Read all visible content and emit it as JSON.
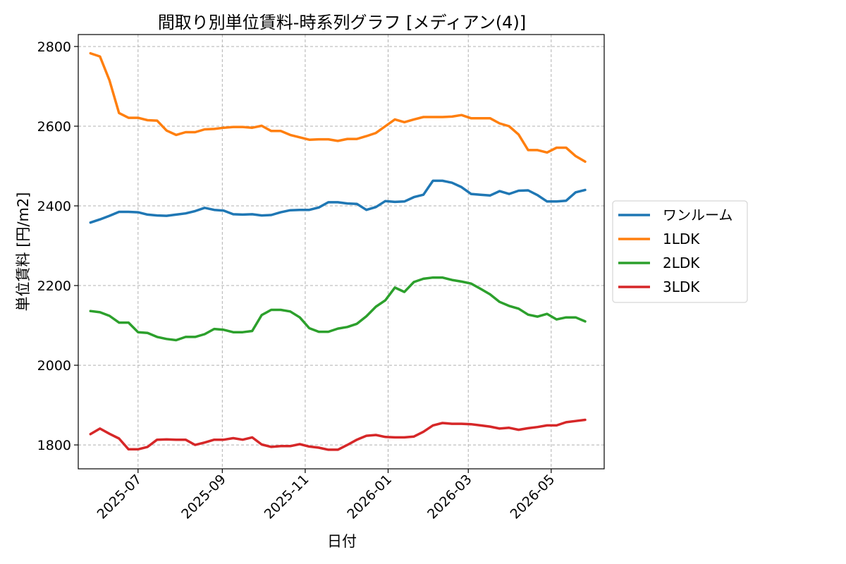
{
  "chart_data": {
    "type": "line",
    "title": "間取り別単位賃料-時系列グラフ [メディアン(4)]",
    "xlabel": "日付",
    "ylabel": "単位賃料 [円/m2]",
    "ylim": [
      1740,
      2830
    ],
    "yticks": [
      1800,
      2000,
      2200,
      2400,
      2600,
      2800
    ],
    "xlim": [
      "2025-05-18",
      "2026-06-09"
    ],
    "xticks": [
      "2025-07-01",
      "2025-09-01",
      "2025-11-01",
      "2026-01-01",
      "2026-03-01",
      "2026-05-01"
    ],
    "xtick_labels": [
      "2025-07",
      "2025-09",
      "2025-11",
      "2026-01",
      "2026-03",
      "2026-05"
    ],
    "grid": true,
    "legend_position": "right-outside",
    "x": [
      "2025-05-27",
      "2025-06-03",
      "2025-06-10",
      "2025-06-17",
      "2025-06-24",
      "2025-07-01",
      "2025-07-08",
      "2025-07-15",
      "2025-07-22",
      "2025-07-29",
      "2025-08-05",
      "2025-08-12",
      "2025-08-19",
      "2025-08-26",
      "2025-09-02",
      "2025-09-09",
      "2025-09-16",
      "2025-09-23",
      "2025-09-30",
      "2025-10-07",
      "2025-10-14",
      "2025-10-21",
      "2025-10-28",
      "2025-11-04",
      "2025-11-11",
      "2025-11-18",
      "2025-11-25",
      "2025-12-02",
      "2025-12-09",
      "2025-12-16",
      "2025-12-23",
      "2025-12-30",
      "2026-01-06",
      "2026-01-13",
      "2026-01-20",
      "2026-01-27",
      "2026-02-03",
      "2026-02-10",
      "2026-02-17",
      "2026-02-24",
      "2026-03-03",
      "2026-03-10",
      "2026-03-17",
      "2026-03-24",
      "2026-03-31",
      "2026-04-07",
      "2026-04-14",
      "2026-04-21",
      "2026-04-28",
      "2026-05-05",
      "2026-05-12",
      "2026-05-19",
      "2026-05-26"
    ],
    "series": [
      {
        "name": "ワンルーム",
        "color": "#1f77b4",
        "values": [
          2358,
          2366,
          2375,
          2385,
          2385,
          2384,
          2378,
          2376,
          2375,
          2378,
          2381,
          2387,
          2395,
          2390,
          2388,
          2379,
          2378,
          2379,
          2376,
          2377,
          2384,
          2389,
          2390,
          2390,
          2396,
          2409,
          2409,
          2406,
          2405,
          2390,
          2397,
          2412,
          2410,
          2411,
          2422,
          2428,
          2463,
          2463,
          2458,
          2447,
          2430,
          2428,
          2426,
          2437,
          2430,
          2438,
          2439,
          2427,
          2411,
          2411,
          2413,
          2434,
          2440
        ]
      },
      {
        "name": "1LDK",
        "color": "#ff7f0e",
        "values": [
          2783,
          2775,
          2715,
          2633,
          2621,
          2621,
          2615,
          2614,
          2589,
          2578,
          2585,
          2585,
          2592,
          2593,
          2596,
          2598,
          2598,
          2596,
          2601,
          2588,
          2588,
          2578,
          2572,
          2566,
          2567,
          2567,
          2563,
          2568,
          2568,
          2575,
          2583,
          2600,
          2617,
          2610,
          2617,
          2623,
          2623,
          2623,
          2624,
          2628,
          2620,
          2620,
          2620,
          2607,
          2600,
          2579,
          2540,
          2540,
          2534,
          2546,
          2546,
          2525,
          2511
        ]
      },
      {
        "name": "2LDK",
        "color": "#2ca02c",
        "values": [
          2136,
          2133,
          2124,
          2107,
          2107,
          2083,
          2081,
          2071,
          2066,
          2063,
          2071,
          2071,
          2078,
          2091,
          2089,
          2083,
          2083,
          2086,
          2126,
          2139,
          2139,
          2135,
          2120,
          2093,
          2084,
          2084,
          2092,
          2096,
          2104,
          2123,
          2147,
          2163,
          2195,
          2184,
          2209,
          2217,
          2220,
          2220,
          2214,
          2210,
          2205,
          2192,
          2178,
          2159,
          2149,
          2142,
          2127,
          2122,
          2129,
          2115,
          2120,
          2120,
          2110
        ]
      },
      {
        "name": "3LDK",
        "color": "#d62728",
        "values": [
          1827,
          1841,
          1828,
          1816,
          1789,
          1789,
          1795,
          1813,
          1814,
          1813,
          1813,
          1800,
          1806,
          1813,
          1813,
          1817,
          1813,
          1819,
          1801,
          1795,
          1797,
          1797,
          1802,
          1796,
          1793,
          1788,
          1788,
          1800,
          1813,
          1823,
          1825,
          1820,
          1819,
          1819,
          1821,
          1833,
          1849,
          1855,
          1853,
          1853,
          1852,
          1849,
          1846,
          1841,
          1843,
          1838,
          1842,
          1845,
          1849,
          1849,
          1857,
          1860,
          1863
        ]
      }
    ]
  }
}
